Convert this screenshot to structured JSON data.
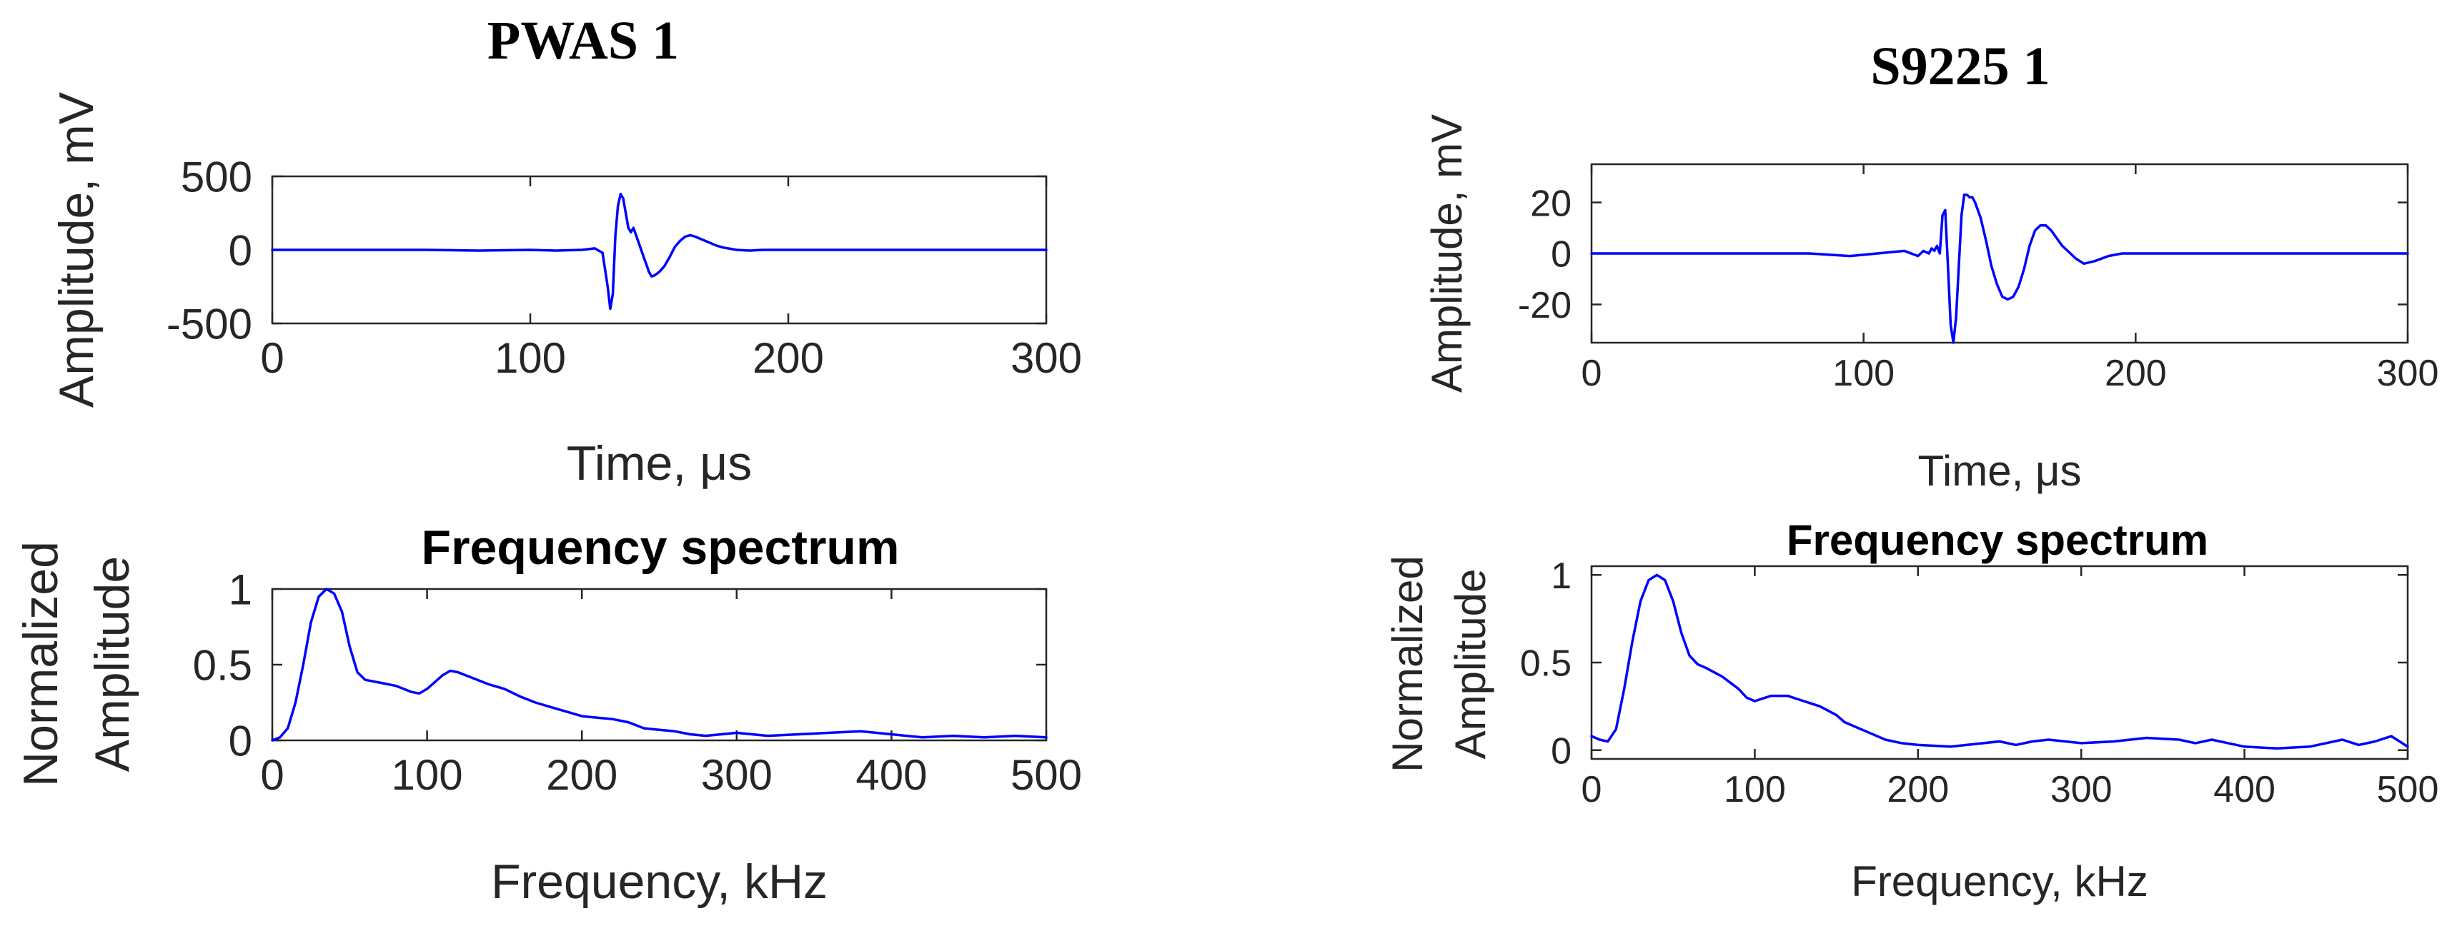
{
  "colors": {
    "line": "#0000ff",
    "axis": "#262626"
  },
  "panels": [
    {
      "title": "PWAS 1",
      "time_title": "",
      "spec_title": "Frequency spectrum"
    },
    {
      "title": "S9225 1",
      "time_title": "",
      "spec_title": "Frequency spectrum"
    }
  ],
  "chart_data": [
    {
      "type": "line",
      "panel": "PWAS 1",
      "title": "",
      "xlabel": "Time, μs",
      "ylabel": "Amplitude, mV",
      "xlim": [
        0,
        300
      ],
      "ylim": [
        -500,
        500
      ],
      "xticks": [
        0,
        100,
        200,
        300
      ],
      "yticks": [
        -500,
        0,
        500
      ],
      "grid": false,
      "series": [
        {
          "x": [
            0,
            60,
            80,
            100,
            110,
            120,
            125,
            128,
            130,
            131,
            132,
            133,
            134,
            135,
            136,
            137,
            138,
            139,
            140,
            141,
            142,
            143,
            144,
            145,
            146,
            147,
            148,
            150,
            152,
            154,
            156,
            158,
            160,
            162,
            164,
            166,
            168,
            170,
            172,
            175,
            180,
            185,
            190,
            200,
            220,
            250,
            300
          ],
          "y": [
            0,
            0,
            -5,
            0,
            -5,
            0,
            10,
            -20,
            -250,
            -400,
            -300,
            100,
            300,
            380,
            350,
            250,
            150,
            120,
            150,
            100,
            50,
            0,
            -50,
            -100,
            -150,
            -180,
            -175,
            -150,
            -110,
            -50,
            20,
            60,
            90,
            100,
            90,
            75,
            60,
            45,
            30,
            15,
            0,
            -5,
            0,
            0,
            0,
            0,
            0
          ]
        }
      ]
    },
    {
      "type": "line",
      "panel": "PWAS 1",
      "title": "Frequency spectrum",
      "xlabel": "Frequency, kHz",
      "ylabel": "Normalized Amplitude",
      "xlim": [
        0,
        500
      ],
      "ylim": [
        0,
        1
      ],
      "xticks": [
        0,
        100,
        200,
        300,
        400,
        500
      ],
      "yticks": [
        0,
        0.5,
        1
      ],
      "grid": false,
      "series": [
        {
          "x": [
            0,
            5,
            10,
            15,
            20,
            25,
            30,
            35,
            40,
            45,
            50,
            55,
            60,
            65,
            70,
            80,
            90,
            95,
            100,
            110,
            115,
            120,
            130,
            140,
            150,
            160,
            170,
            180,
            190,
            200,
            210,
            220,
            230,
            240,
            250,
            260,
            270,
            280,
            290,
            300,
            310,
            320,
            340,
            360,
            380,
            400,
            420,
            440,
            460,
            480,
            500
          ],
          "y": [
            0.0,
            0.02,
            0.08,
            0.25,
            0.5,
            0.78,
            0.95,
            1.0,
            0.97,
            0.85,
            0.62,
            0.45,
            0.4,
            0.39,
            0.38,
            0.36,
            0.32,
            0.31,
            0.34,
            0.43,
            0.46,
            0.45,
            0.41,
            0.37,
            0.34,
            0.29,
            0.25,
            0.22,
            0.19,
            0.16,
            0.15,
            0.14,
            0.12,
            0.08,
            0.07,
            0.06,
            0.04,
            0.03,
            0.04,
            0.05,
            0.04,
            0.03,
            0.04,
            0.05,
            0.06,
            0.04,
            0.02,
            0.03,
            0.02,
            0.03,
            0.02
          ]
        }
      ]
    },
    {
      "type": "line",
      "panel": "S9225 1",
      "title": "",
      "xlabel": "Time, μs",
      "ylabel": "Amplitude, mV",
      "xlim": [
        0,
        300
      ],
      "ylim": [
        -35,
        35
      ],
      "xticks": [
        0,
        100,
        200,
        300
      ],
      "yticks": [
        -20,
        0,
        20
      ],
      "grid": false,
      "series": [
        {
          "x": [
            0,
            80,
            95,
            105,
            115,
            120,
            122,
            124,
            125,
            126,
            127,
            128,
            129,
            130,
            131,
            132,
            133,
            134,
            135,
            136,
            137,
            138,
            139,
            140,
            141,
            143,
            145,
            147,
            149,
            151,
            153,
            155,
            157,
            159,
            161,
            163,
            165,
            167,
            169,
            171,
            173,
            175,
            178,
            181,
            185,
            190,
            195,
            200,
            220,
            250,
            300
          ],
          "y": [
            0,
            0,
            -1,
            0,
            1,
            -1,
            1,
            0,
            2,
            1,
            3,
            0,
            15,
            17,
            -5,
            -28,
            -35,
            -25,
            -5,
            15,
            23,
            23,
            22,
            22,
            20,
            14,
            5,
            -5,
            -12,
            -17,
            -18,
            -17,
            -13,
            -6,
            3,
            9,
            11,
            11,
            9,
            6,
            3,
            1,
            -2,
            -4,
            -3,
            -1,
            0,
            0,
            0,
            0,
            0
          ]
        }
      ]
    },
    {
      "type": "line",
      "panel": "S9225 1",
      "title": "Frequency spectrum",
      "xlabel": "Frequency, kHz",
      "ylabel": "Normalized Amplitude",
      "xlim": [
        0,
        500
      ],
      "ylim": [
        -0.05,
        1.05
      ],
      "xticks": [
        0,
        100,
        200,
        300,
        400,
        500
      ],
      "yticks": [
        0,
        0.5,
        1
      ],
      "grid": false,
      "series": [
        {
          "x": [
            0,
            5,
            10,
            15,
            20,
            25,
            30,
            35,
            40,
            45,
            50,
            55,
            60,
            65,
            70,
            80,
            90,
            95,
            100,
            110,
            120,
            130,
            140,
            150,
            155,
            160,
            170,
            180,
            190,
            200,
            220,
            240,
            250,
            260,
            270,
            280,
            300,
            320,
            340,
            360,
            370,
            380,
            390,
            400,
            420,
            440,
            460,
            470,
            480,
            490,
            500
          ],
          "y": [
            0.08,
            0.06,
            0.05,
            0.12,
            0.35,
            0.62,
            0.85,
            0.97,
            1.0,
            0.97,
            0.85,
            0.67,
            0.54,
            0.49,
            0.47,
            0.42,
            0.35,
            0.3,
            0.28,
            0.31,
            0.31,
            0.28,
            0.25,
            0.2,
            0.16,
            0.14,
            0.1,
            0.06,
            0.04,
            0.03,
            0.02,
            0.04,
            0.05,
            0.03,
            0.05,
            0.06,
            0.04,
            0.05,
            0.07,
            0.06,
            0.04,
            0.06,
            0.04,
            0.02,
            0.01,
            0.02,
            0.06,
            0.03,
            0.05,
            0.08,
            0.02
          ]
        }
      ]
    }
  ]
}
